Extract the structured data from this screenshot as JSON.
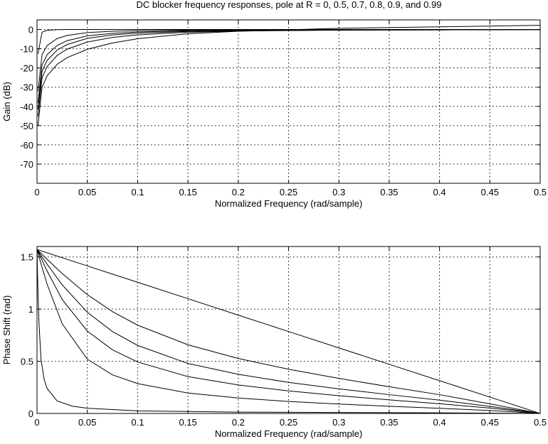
{
  "chart_data": [
    {
      "type": "line",
      "title": "DC blocker frequency responses, pole at R = 0, 0.5, 0.7, 0.8, 0.9, and 0.99",
      "xlabel": "Normalized Frequency (rad/sample)",
      "ylabel": "Gain (dB)",
      "xlim": [
        0,
        0.5
      ],
      "ylim": [
        -80,
        5
      ],
      "xticks": [
        "0",
        "0.05",
        "0.1",
        "0.15",
        "0.2",
        "0.25",
        "0.3",
        "0.35",
        "0.4",
        "0.45",
        "0.5"
      ],
      "yticks": [
        "0",
        "-10",
        "-20",
        "-30",
        "-40",
        "-50",
        "-60",
        "-70"
      ],
      "grid": true,
      "series": [
        {
          "R": 0,
          "x": [
            0.001,
            0.005,
            0.01,
            0.02,
            0.03,
            0.05,
            0.075,
            0.1,
            0.15,
            0.2,
            0.3,
            0.4,
            0.5
          ],
          "values": [
            -50.0,
            -30.1,
            -24.1,
            -18.1,
            -14.6,
            -10.3,
            -7.0,
            -4.8,
            -2.2,
            -0.9,
            0.6,
            1.4,
            2.2
          ]
        },
        {
          "R": 0.5,
          "x": [
            0.001,
            0.005,
            0.01,
            0.02,
            0.03,
            0.05,
            0.075,
            0.1,
            0.15,
            0.2,
            0.3,
            0.4,
            0.5
          ],
          "values": [
            -45.2,
            -25.2,
            -19.3,
            -13.5,
            -10.2,
            -6.5,
            -4.1,
            -2.8,
            -1.4,
            -0.8,
            -0.3,
            -0.1,
            0.0
          ]
        },
        {
          "R": 0.7,
          "x": [
            0.001,
            0.005,
            0.01,
            0.02,
            0.03,
            0.05,
            0.075,
            0.1,
            0.15,
            0.2,
            0.3,
            0.4,
            0.5
          ],
          "values": [
            -41.6,
            -21.8,
            -16.1,
            -10.7,
            -7.8,
            -4.6,
            -2.8,
            -1.9,
            -1.0,
            -0.6,
            -0.3,
            -0.2,
            -0.1
          ]
        },
        {
          "R": 0.8,
          "x": [
            0.001,
            0.005,
            0.01,
            0.02,
            0.03,
            0.05,
            0.075,
            0.1,
            0.15,
            0.2,
            0.3,
            0.4,
            0.5
          ],
          "values": [
            -38.1,
            -18.5,
            -13.1,
            -8.3,
            -5.8,
            -3.3,
            -2.0,
            -1.3,
            -0.7,
            -0.5,
            -0.3,
            -0.2,
            -0.1
          ]
        },
        {
          "R": 0.9,
          "x": [
            0.001,
            0.005,
            0.01,
            0.02,
            0.03,
            0.05,
            0.075,
            0.1,
            0.15,
            0.2,
            0.3,
            0.4,
            0.5
          ],
          "values": [
            -32.1,
            -13.1,
            -8.4,
            -4.7,
            -3.1,
            -1.6,
            -0.9,
            -0.6,
            -0.3,
            -0.2,
            -0.1,
            -0.1,
            0.0
          ]
        },
        {
          "R": 0.99,
          "x": [
            0.001,
            0.005,
            0.01,
            0.02,
            0.03,
            0.05,
            0.075,
            0.1,
            0.15,
            0.2,
            0.3,
            0.4,
            0.5
          ],
          "values": [
            -12.6,
            -1.4,
            -0.4,
            -0.1,
            0.0,
            0.0,
            0.0,
            0.0,
            0.0,
            0.0,
            0.0,
            0.0,
            0.0
          ]
        }
      ]
    },
    {
      "type": "line",
      "title": "",
      "xlabel": "Normalized Frequency (rad/sample)",
      "ylabel": "Phase Shift (rad)",
      "xlim": [
        0,
        0.5
      ],
      "ylim": [
        0,
        1.6
      ],
      "xticks": [
        "0",
        "0.05",
        "0.1",
        "0.15",
        "0.2",
        "0.25",
        "0.3",
        "0.35",
        "0.4",
        "0.45",
        "0.5"
      ],
      "yticks": [
        "0",
        "0.5",
        "1",
        "1.5"
      ],
      "grid": true,
      "series": [
        {
          "R": 0,
          "x": [
            0,
            0.05,
            0.1,
            0.15,
            0.2,
            0.25,
            0.3,
            0.35,
            0.4,
            0.45,
            0.5
          ],
          "values": [
            1.571,
            1.414,
            1.257,
            1.1,
            0.942,
            0.785,
            0.628,
            0.471,
            0.314,
            0.157,
            0.0
          ]
        },
        {
          "R": 0.5,
          "x": [
            0,
            0.01,
            0.025,
            0.05,
            0.075,
            0.1,
            0.15,
            0.2,
            0.25,
            0.3,
            0.35,
            0.4,
            0.45,
            0.5
          ],
          "values": [
            1.571,
            1.478,
            1.341,
            1.139,
            0.976,
            0.846,
            0.658,
            0.527,
            0.424,
            0.336,
            0.256,
            0.18,
            0.092,
            0.0
          ]
        },
        {
          "R": 0.7,
          "x": [
            0,
            0.01,
            0.025,
            0.05,
            0.075,
            0.1,
            0.15,
            0.2,
            0.25,
            0.3,
            0.35,
            0.4,
            0.45,
            0.5
          ],
          "values": [
            1.571,
            1.431,
            1.233,
            0.97,
            0.785,
            0.652,
            0.479,
            0.375,
            0.298,
            0.236,
            0.18,
            0.128,
            0.068,
            0.0
          ]
        },
        {
          "R": 0.8,
          "x": [
            0,
            0.01,
            0.025,
            0.05,
            0.075,
            0.1,
            0.15,
            0.2,
            0.25,
            0.3,
            0.35,
            0.4,
            0.45,
            0.5
          ],
          "values": [
            1.571,
            1.366,
            1.093,
            0.789,
            0.61,
            0.493,
            0.353,
            0.273,
            0.216,
            0.17,
            0.13,
            0.093,
            0.052,
            0.0
          ]
        },
        {
          "R": 0.9,
          "x": [
            0,
            0.005,
            0.01,
            0.025,
            0.05,
            0.075,
            0.1,
            0.15,
            0.2,
            0.25,
            0.3,
            0.35,
            0.4,
            0.45,
            0.5
          ],
          "values": [
            1.571,
            1.4,
            1.24,
            0.86,
            0.52,
            0.37,
            0.286,
            0.196,
            0.148,
            0.115,
            0.09,
            0.069,
            0.049,
            0.028,
            0.0
          ]
        },
        {
          "R": 0.99,
          "x": [
            0,
            0.0005,
            0.001,
            0.002,
            0.004,
            0.007,
            0.01,
            0.02,
            0.035,
            0.05,
            0.1,
            0.2,
            0.3,
            0.4,
            0.5
          ],
          "values": [
            1.571,
            1.35,
            1.15,
            0.86,
            0.52,
            0.33,
            0.24,
            0.12,
            0.07,
            0.05,
            0.025,
            0.013,
            0.009,
            0.006,
            0.0
          ]
        }
      ]
    }
  ]
}
